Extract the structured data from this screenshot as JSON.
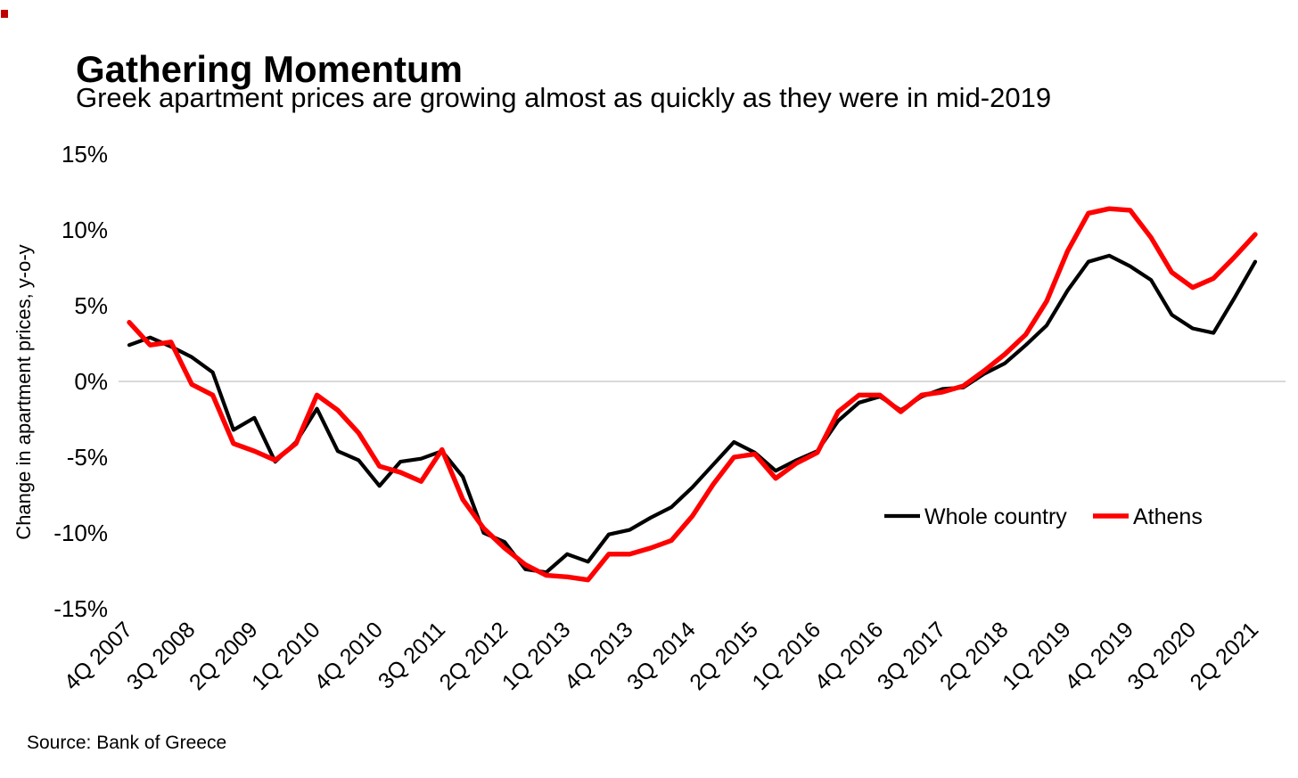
{
  "page": {
    "title": "Gathering Momentum",
    "subtitle": "Greek apartment prices are growing almost as quickly as they were in mid-2019",
    "source": "Source: Bank of Greece"
  },
  "legend": {
    "items": [
      {
        "label": "Whole country",
        "color": "#000000"
      },
      {
        "label": "Athens",
        "color": "#ff0000"
      }
    ],
    "position": "inside-right-middle"
  },
  "colors": {
    "whole_country": "#000000",
    "athens": "#ff0000",
    "gridline": "#d9d9d9",
    "corner_marker": "#c00000"
  },
  "chart_data": {
    "type": "line",
    "title": "Gathering Momentum",
    "subtitle": "Greek apartment prices are growing almost as quickly as they were in mid-2019",
    "xlabel": "",
    "ylabel": "Change in apartment prices, y-o-y",
    "ylim": [
      -15,
      15
    ],
    "yticks": [
      15,
      10,
      5,
      0,
      -5,
      -10,
      -15
    ],
    "ytick_labels": [
      "15%",
      "10%",
      "5%",
      "0%",
      "-5%",
      "-10%",
      "-15%"
    ],
    "gridlines": "horizontal line at 0% only",
    "legend_position": "inside right",
    "xtick_every": 3,
    "xtick_labels": [
      "4Q 2007",
      "3Q 2008",
      "2Q 2009",
      "1Q 2010",
      "4Q 2010",
      "3Q 2011",
      "2Q 2012",
      "1Q 2013",
      "4Q 2013",
      "3Q 2014",
      "2Q 2015",
      "1Q 2016",
      "4Q 2016",
      "3Q 2017",
      "2Q 2018",
      "1Q 2019",
      "4Q 2019",
      "3Q 2020",
      "2Q 2021"
    ],
    "categories": [
      "4Q 2007",
      "1Q 2008",
      "2Q 2008",
      "3Q 2008",
      "4Q 2008",
      "1Q 2009",
      "2Q 2009",
      "3Q 2009",
      "4Q 2009",
      "1Q 2010",
      "2Q 2010",
      "3Q 2010",
      "4Q 2010",
      "1Q 2011",
      "2Q 2011",
      "3Q 2011",
      "4Q 2011",
      "1Q 2012",
      "2Q 2012",
      "3Q 2012",
      "4Q 2012",
      "1Q 2013",
      "2Q 2013",
      "3Q 2013",
      "4Q 2013",
      "1Q 2014",
      "2Q 2014",
      "3Q 2014",
      "4Q 2014",
      "1Q 2015",
      "2Q 2015",
      "3Q 2015",
      "4Q 2015",
      "1Q 2016",
      "2Q 2016",
      "3Q 2016",
      "4Q 2016",
      "1Q 2017",
      "2Q 2017",
      "3Q 2017",
      "4Q 2017",
      "1Q 2018",
      "2Q 2018",
      "3Q 2018",
      "4Q 2018",
      "1Q 2019",
      "2Q 2019",
      "3Q 2019",
      "4Q 2019",
      "1Q 2020",
      "2Q 2020",
      "3Q 2020",
      "4Q 2020",
      "1Q 2021",
      "2Q 2021"
    ],
    "series": [
      {
        "name": "Whole country",
        "color": "#000000",
        "stroke_width": 4.2,
        "values": [
          2.4,
          2.9,
          2.3,
          1.6,
          0.6,
          -3.2,
          -2.4,
          -5.3,
          -4.0,
          -1.8,
          -4.6,
          -5.2,
          -6.9,
          -5.3,
          -5.1,
          -4.6,
          -6.3,
          -10.0,
          -10.6,
          -12.4,
          -12.6,
          -11.4,
          -11.9,
          -10.1,
          -9.8,
          -9.0,
          -8.3,
          -7.0,
          -5.5,
          -4.0,
          -4.7,
          -5.9,
          -5.2,
          -4.6,
          -2.6,
          -1.4,
          -1.0,
          -1.9,
          -1.0,
          -0.5,
          -0.4,
          0.5,
          1.2,
          2.4,
          3.7,
          6.0,
          7.9,
          8.3,
          7.6,
          6.7,
          4.4,
          3.5,
          3.2,
          5.5,
          7.9
        ]
      },
      {
        "name": "Athens",
        "color": "#ff0000",
        "stroke_width": 5.4,
        "values": [
          3.9,
          2.4,
          2.6,
          -0.2,
          -0.9,
          -4.1,
          -4.6,
          -5.2,
          -4.1,
          -0.9,
          -1.9,
          -3.4,
          -5.6,
          -6.0,
          -6.6,
          -4.5,
          -7.8,
          -9.7,
          -11.0,
          -12.1,
          -12.8,
          -12.9,
          -13.1,
          -11.4,
          -11.4,
          -11.0,
          -10.5,
          -8.9,
          -6.8,
          -5.0,
          -4.8,
          -6.4,
          -5.4,
          -4.7,
          -2.0,
          -0.9,
          -0.9,
          -2.0,
          -0.9,
          -0.7,
          -0.3,
          0.7,
          1.8,
          3.1,
          5.3,
          8.6,
          11.1,
          11.4,
          11.3,
          9.5,
          7.2,
          6.2,
          6.8,
          8.2,
          9.7
        ]
      }
    ],
    "source": "Source: Bank of Greece"
  }
}
